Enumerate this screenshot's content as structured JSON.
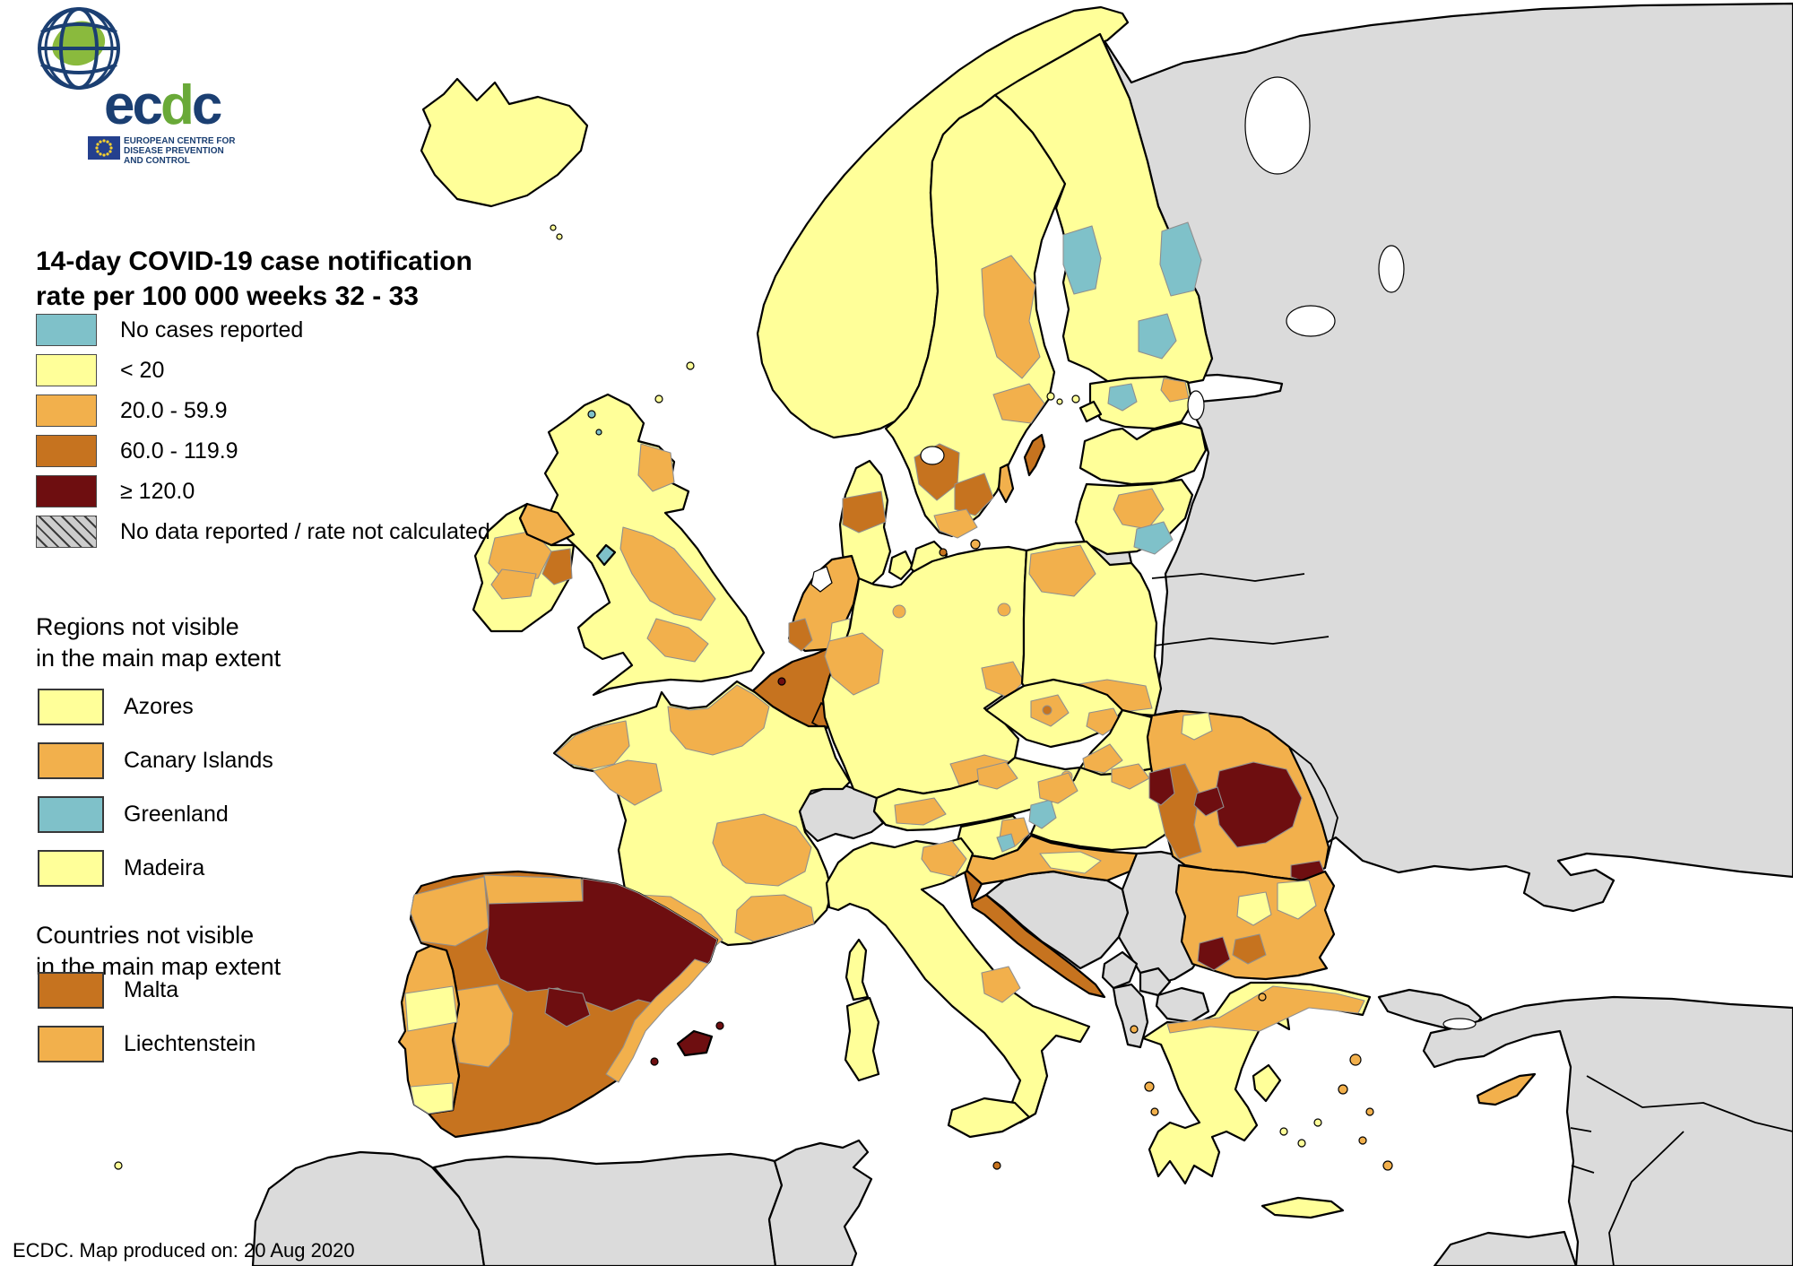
{
  "logo": {
    "wordmark": "ecdc",
    "caption_lines": [
      "EUROPEAN CENTRE FOR",
      "DISEASE PREVENTION",
      "AND CONTROL"
    ],
    "navy": "#1b3f72",
    "green": "#69a938"
  },
  "title": {
    "line1": "14-day COVID-19 case notification",
    "line2": "rate per 100 000 weeks 32 - 33"
  },
  "legend": {
    "items": [
      {
        "label": "No cases reported",
        "category": "no_cases"
      },
      {
        "label": "< 20",
        "category": "lt20"
      },
      {
        "label": "20.0 - 59.9",
        "category": "r20_59"
      },
      {
        "label": "60.0 - 119.9",
        "category": "r60_119"
      },
      {
        "label": "≥ 120.0",
        "category": "r120"
      },
      {
        "label": "No data reported / rate not calculated",
        "category": "no_data",
        "hatched": true
      }
    ]
  },
  "regions_section": {
    "heading_line1": "Regions not visible",
    "heading_line2": "in the main map extent",
    "items": [
      {
        "label": "Azores",
        "category": "lt20"
      },
      {
        "label": "Canary Islands",
        "category": "r20_59"
      },
      {
        "label": "Greenland",
        "category": "no_cases"
      },
      {
        "label": "Madeira",
        "category": "lt20"
      }
    ]
  },
  "countries_section": {
    "heading_line1": "Countries not visible",
    "heading_line2": "in the main map extent",
    "items": [
      {
        "label": "Malta",
        "category": "r60_119"
      },
      {
        "label": "Liechtenstein",
        "category": "r20_59"
      }
    ]
  },
  "footer": {
    "text": "ECDC. Map produced on: 20 Aug 2020"
  },
  "map": {
    "sea_color": "#ffffff",
    "border_color": "#000000",
    "region_border_color": "#8f8f8f",
    "colors": {
      "no_cases": "#7fc1c9",
      "lt20": "#ffff99",
      "r20_59": "#f2b04c",
      "r60_119": "#c6731f",
      "r120": "#6e0e10",
      "no_data": "#cdcdcd",
      "not_included": "#dbdbdb"
    },
    "areas": {
      "ru_blob": "not_included",
      "turkey_thrace": "not_included",
      "turkey_main": "not_included",
      "egypt": "not_included",
      "morocco": "not_included",
      "algeria": "not_included",
      "tunisia": "not_included",
      "switzerland": "not_included",
      "kaliningrad": "not_included",
      "bosnia": "not_included",
      "serbia": "not_included",
      "montenegro": "not_included",
      "kosovo": "not_included",
      "albania": "not_included",
      "macedonia": "not_included",
      "iceland": "lt20",
      "norway": "lt20",
      "sweden": "lt20",
      "se_vg": "r60_119",
      "se_kron": "r60_119",
      "se_skane": "r20_59",
      "se_mid": "r20_59",
      "se_east": "r20_59",
      "gotland": "r60_119",
      "oland": "r20_59",
      "finland": "lt20",
      "fi_teal_w": "no_cases",
      "fi_teal_e": "no_cases",
      "fi_teal_se": "no_cases",
      "denmark": "lt20",
      "dk_mid": "r60_119",
      "dk_funen": "lt20",
      "dk_zealand": "lt20",
      "dk_cph": "r60_119",
      "bornholm": "r20_59",
      "estonia": "lt20",
      "ee_teal": "no_cases",
      "ee_ne": "r20_59",
      "ee_isl": "lt20",
      "ee_isl2": "lt20",
      "latvia": "lt20",
      "lithuania": "lt20",
      "lt_mid": "r20_59",
      "lt_teal": "no_cases",
      "ireland": "lt20",
      "ie_mid": "r20_59",
      "ie_sw": "r20_59",
      "ie_dub": "r60_119",
      "uk": "lt20",
      "uk_neng": "r20_59",
      "uk_mid": "r20_59",
      "uk_nescot": "r20_59",
      "uk_ni": "r20_59",
      "iom": "no_cases",
      "hebr1": "no_cases",
      "hebr2": "no_cases",
      "shet1": "lt20",
      "ork1": "lt20",
      "faroe1": "lt20",
      "faroe2": "lt20",
      "netherlands": "r20_59",
      "nl_sh": "r60_119",
      "nl_e": "lt20",
      "belgium": "r60_119",
      "be_bru": "r120",
      "germany": "lt20",
      "de_nrw": "r20_59",
      "de_sax": "r20_59",
      "de_bav": "r20_59",
      "de_bremen": "r20_59",
      "de_berlin": "r20_59",
      "poland": "lt20",
      "pl_nw": "r20_59",
      "pl_s": "r20_59",
      "czechia": "lt20",
      "cz_pr": "r20_59",
      "cz_prc": "r60_119",
      "cz_mor": "r20_59",
      "slovakia": "lt20",
      "sk_w": "r20_59",
      "austria": "lt20",
      "at_tyrol": "r20_59",
      "at_up": "r20_59",
      "at_vienna": "r20_59",
      "hungary": "lt20",
      "hu_nw": "r20_59",
      "hu_n": "r20_59",
      "hu_teal": "no_cases",
      "slovenia": "lt20",
      "si_e": "r20_59",
      "croatia": "r20_59",
      "hr_y": "lt20",
      "hr_coast": "r60_119",
      "hr_teal": "no_cases",
      "france": "lt20",
      "fr_brit": "r20_59",
      "fr_loire": "r20_59",
      "fr_north": "r20_59",
      "fr_aura": "r20_59",
      "fr_occ": "r20_59",
      "fr_paca": "r20_59",
      "corsica": "lt20",
      "spain": "r60_119",
      "es_gal": "r20_59",
      "es_ncoast": "r20_59",
      "es_red": "r120",
      "es_madrid": "r120",
      "es_ext": "r20_59",
      "es_val": "r20_59",
      "mallorca": "r120",
      "menorca": "r120",
      "ibiza": "r120",
      "portugal": "r20_59",
      "pt_centro": "lt20",
      "pt_algarve": "lt20",
      "italy": "lt20",
      "it_veneto": "r20_59",
      "it_abruzzo": "r20_59",
      "sicily": "lt20",
      "sardinia": "lt20",
      "malta": "r60_119",
      "romania": "r20_59",
      "ro_w": "r60_119",
      "ro_nwred": "r120",
      "ro_ered": "r120",
      "ro_alba": "r120",
      "ro_buc": "r120",
      "ro_ny": "lt20",
      "bulgaria": "r20_59",
      "bg_sw": "r120",
      "bg_pl": "r60_119",
      "bg_ne": "lt20",
      "bg_c": "lt20",
      "greece": "lt20",
      "gr_n": "r20_59",
      "crete": "lt20",
      "euboea": "lt20",
      "cyc1": "lt20",
      "cyc2": "lt20",
      "cyc3": "lt20",
      "rhodes": "r20_59",
      "kos_i": "r20_59",
      "lesbos": "r20_59",
      "chios": "r20_59",
      "samos": "r20_59",
      "thasos": "r20_59",
      "corfu": "r20_59",
      "kefalonia": "r20_59",
      "zakynthos": "r20_59",
      "cyprus": "r20_59",
      "madeira_dot": "lt20",
      "aland1": "lt20",
      "aland2": "lt20"
    }
  }
}
